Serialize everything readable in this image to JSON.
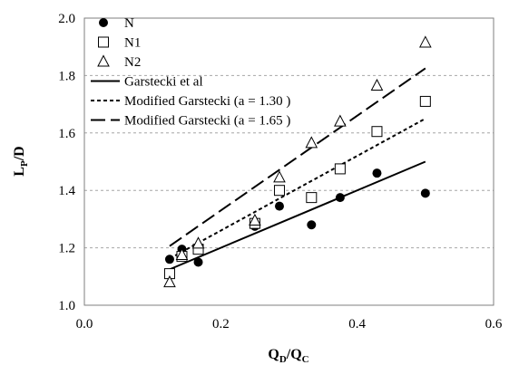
{
  "chart_data": {
    "type": "scatter",
    "xlabel_main": "Q",
    "xlabel_sub1": "D",
    "xlabel_mid": "/Q",
    "xlabel_sub2": "C",
    "ylabel_main": "L",
    "ylabel_sub": "P",
    "ylabel_tail": "/D",
    "xlim": [
      0.0,
      0.6
    ],
    "ylim": [
      1.0,
      2.0
    ],
    "x_ticks": [
      "0.0",
      "0.2",
      "0.4",
      "0.6"
    ],
    "y_ticks": [
      "1.0",
      "1.2",
      "1.4",
      "1.6",
      "1.8",
      "2.0"
    ],
    "grid": "horizontal dashed",
    "legend_placement": "top-left",
    "series": [
      {
        "name": "N",
        "marker": "filled-circle",
        "points": [
          [
            0.125,
            1.16
          ],
          [
            0.143,
            1.195
          ],
          [
            0.167,
            1.15
          ],
          [
            0.25,
            1.275
          ],
          [
            0.286,
            1.345
          ],
          [
            0.333,
            1.28
          ],
          [
            0.375,
            1.375
          ],
          [
            0.429,
            1.46
          ],
          [
            0.5,
            1.39
          ]
        ]
      },
      {
        "name": "N1",
        "marker": "open-square",
        "points": [
          [
            0.125,
            1.11
          ],
          [
            0.143,
            1.17
          ],
          [
            0.167,
            1.195
          ],
          [
            0.25,
            1.285
          ],
          [
            0.286,
            1.4
          ],
          [
            0.333,
            1.375
          ],
          [
            0.375,
            1.475
          ],
          [
            0.429,
            1.605
          ],
          [
            0.5,
            1.71
          ]
        ]
      },
      {
        "name": "N2",
        "marker": "open-triangle",
        "points": [
          [
            0.125,
            1.08
          ],
          [
            0.143,
            1.175
          ],
          [
            0.167,
            1.215
          ],
          [
            0.25,
            1.295
          ],
          [
            0.286,
            1.445
          ],
          [
            0.333,
            1.565
          ],
          [
            0.375,
            1.64
          ],
          [
            0.429,
            1.765
          ],
          [
            0.5,
            1.915
          ]
        ]
      }
    ],
    "lines": [
      {
        "name": "Garstecki et al",
        "style": "solid",
        "x": [
          0.125,
          0.5
        ],
        "y": [
          1.125,
          1.5
        ]
      },
      {
        "name": "Modified Garstecki (a = 1.30 )",
        "style": "dotted",
        "x": [
          0.125,
          0.5
        ],
        "y": [
          1.1625,
          1.65
        ]
      },
      {
        "name": "Modified Garstecki (a = 1.65 )",
        "style": "dashed",
        "x": [
          0.125,
          0.5
        ],
        "y": [
          1.206,
          1.825
        ]
      }
    ]
  }
}
